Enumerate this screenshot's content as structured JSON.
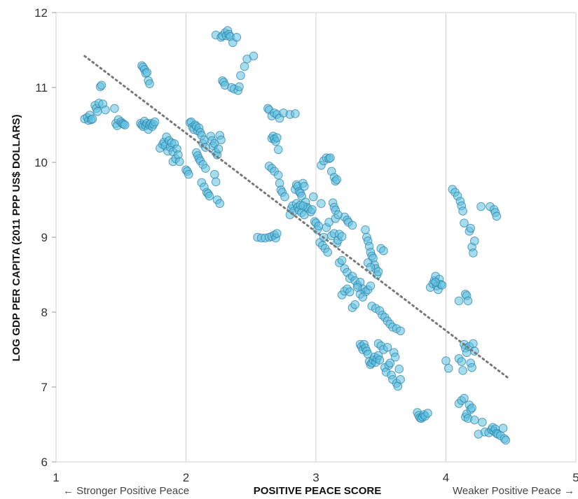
{
  "chart_data": {
    "type": "scatter",
    "xlabel": "POSITIVE PEACE SCORE",
    "ylabel": "LOG GDP PER CAPITA (2011 PPP US$ DOLLARS)",
    "xlim": [
      1,
      5
    ],
    "ylim": [
      6,
      12
    ],
    "x_ticks": [
      "1",
      "2",
      "3",
      "4",
      "5"
    ],
    "y_ticks": [
      "6",
      "7",
      "8",
      "9",
      "10",
      "11",
      "12"
    ],
    "x_left_annotation": "← Stronger Positive Peace",
    "x_right_annotation": "Weaker Positive Peace →",
    "grid": "vertical",
    "colors": {
      "points_fill": "#5bbfe0",
      "points_stroke": "#2a7ea3",
      "trend": "#777777",
      "grid": "#d0d0d0"
    },
    "trendline": {
      "x": [
        1.22,
        4.48
      ],
      "y": [
        11.42,
        7.12
      ]
    },
    "points": [
      [
        1.22,
        10.58
      ],
      [
        1.24,
        10.6
      ],
      [
        1.25,
        10.56
      ],
      [
        1.26,
        10.63
      ],
      [
        1.27,
        10.57
      ],
      [
        1.28,
        10.58
      ],
      [
        1.3,
        10.76
      ],
      [
        1.31,
        10.72
      ],
      [
        1.32,
        10.68
      ],
      [
        1.33,
        10.79
      ],
      [
        1.34,
        11.01
      ],
      [
        1.35,
        11.03
      ],
      [
        1.36,
        10.78
      ],
      [
        1.38,
        10.7
      ],
      [
        1.45,
        10.72
      ],
      [
        1.46,
        10.52
      ],
      [
        1.47,
        10.49
      ],
      [
        1.48,
        10.57
      ],
      [
        1.5,
        10.54
      ],
      [
        1.51,
        10.52
      ],
      [
        1.52,
        10.51
      ],
      [
        1.53,
        10.5
      ],
      [
        1.66,
        11.29
      ],
      [
        1.67,
        11.27
      ],
      [
        1.68,
        11.24
      ],
      [
        1.69,
        11.19
      ],
      [
        1.7,
        11.2
      ],
      [
        1.71,
        11.09
      ],
      [
        1.72,
        11.05
      ],
      [
        1.65,
        10.52
      ],
      [
        1.66,
        10.5
      ],
      [
        1.67,
        10.48
      ],
      [
        1.68,
        10.55
      ],
      [
        1.69,
        10.49
      ],
      [
        1.7,
        10.52
      ],
      [
        1.71,
        10.44
      ],
      [
        1.72,
        10.5
      ],
      [
        1.73,
        10.52
      ],
      [
        1.74,
        10.48
      ],
      [
        1.75,
        10.51
      ],
      [
        1.76,
        10.54
      ],
      [
        1.8,
        10.19
      ],
      [
        1.82,
        10.24
      ],
      [
        1.83,
        10.27
      ],
      [
        1.84,
        10.22
      ],
      [
        1.85,
        10.34
      ],
      [
        1.86,
        10.15
      ],
      [
        1.87,
        10.29
      ],
      [
        1.88,
        10.2
      ],
      [
        1.89,
        10.26
      ],
      [
        1.9,
        10.14
      ],
      [
        1.9,
        10.01
      ],
      [
        1.91,
        10.25
      ],
      [
        1.92,
        10.05
      ],
      [
        1.93,
        10.18
      ],
      [
        1.94,
        10.1
      ],
      [
        1.95,
        10.01
      ],
      [
        2.0,
        9.9
      ],
      [
        2.01,
        9.88
      ],
      [
        2.02,
        9.84
      ],
      [
        2.03,
        10.53
      ],
      [
        2.04,
        10.54
      ],
      [
        2.05,
        10.47
      ],
      [
        2.06,
        10.44
      ],
      [
        2.07,
        10.5
      ],
      [
        2.08,
        10.48
      ],
      [
        2.09,
        10.42
      ],
      [
        2.1,
        10.46
      ],
      [
        2.11,
        10.4
      ],
      [
        2.12,
        10.36
      ],
      [
        2.13,
        10.25
      ],
      [
        2.14,
        10.3
      ],
      [
        2.15,
        10.2
      ],
      [
        2.08,
        10.13
      ],
      [
        2.09,
        10.09
      ],
      [
        2.1,
        10.05
      ],
      [
        2.11,
        10.02
      ],
      [
        2.12,
        9.73
      ],
      [
        2.13,
        9.97
      ],
      [
        2.14,
        9.67
      ],
      [
        2.15,
        9.92
      ],
      [
        2.16,
        9.6
      ],
      [
        2.17,
        9.58
      ],
      [
        2.18,
        9.55
      ],
      [
        2.19,
        10.35
      ],
      [
        2.2,
        10.29
      ],
      [
        2.21,
        10.22
      ],
      [
        2.22,
        10.25
      ],
      [
        2.23,
        10.13
      ],
      [
        2.24,
        10.1
      ],
      [
        2.25,
        10.18
      ],
      [
        2.26,
        10.36
      ],
      [
        2.27,
        10.3
      ],
      [
        2.22,
        9.84
      ],
      [
        2.23,
        9.74
      ],
      [
        2.24,
        9.5
      ],
      [
        2.26,
        9.45
      ],
      [
        2.23,
        11.7
      ],
      [
        2.27,
        11.67
      ],
      [
        2.28,
        11.69
      ],
      [
        2.3,
        11.73
      ],
      [
        2.31,
        11.69
      ],
      [
        2.32,
        11.76
      ],
      [
        2.33,
        11.71
      ],
      [
        2.34,
        11.68
      ],
      [
        2.36,
        11.6
      ],
      [
        2.39,
        11.67
      ],
      [
        2.28,
        11.09
      ],
      [
        2.29,
        11.07
      ],
      [
        2.3,
        11.03
      ],
      [
        2.35,
        11.0
      ],
      [
        2.37,
        10.98
      ],
      [
        2.4,
        10.96
      ],
      [
        2.41,
        11.01
      ],
      [
        2.42,
        11.16
      ],
      [
        2.45,
        11.28
      ],
      [
        2.47,
        11.38
      ],
      [
        2.52,
        11.42
      ],
      [
        2.55,
        9.0
      ],
      [
        2.58,
        8.99
      ],
      [
        2.61,
        8.99
      ],
      [
        2.64,
        9.0
      ],
      [
        2.66,
        9.01
      ],
      [
        2.68,
        9.03
      ],
      [
        2.69,
        8.99
      ],
      [
        2.7,
        9.05
      ],
      [
        2.63,
        10.72
      ],
      [
        2.64,
        10.7
      ],
      [
        2.66,
        10.62
      ],
      [
        2.68,
        10.66
      ],
      [
        2.7,
        10.64
      ],
      [
        2.72,
        10.59
      ],
      [
        2.75,
        10.66
      ],
      [
        2.8,
        10.64
      ],
      [
        2.84,
        10.65
      ],
      [
        2.66,
        10.32
      ],
      [
        2.67,
        10.35
      ],
      [
        2.68,
        10.31
      ],
      [
        2.69,
        10.28
      ],
      [
        2.7,
        10.33
      ],
      [
        2.71,
        10.17
      ],
      [
        2.64,
        9.95
      ],
      [
        2.66,
        9.92
      ],
      [
        2.68,
        9.88
      ],
      [
        2.71,
        9.83
      ],
      [
        2.72,
        9.72
      ],
      [
        2.73,
        9.63
      ],
      [
        2.74,
        9.6
      ],
      [
        2.76,
        9.54
      ],
      [
        2.8,
        9.3
      ],
      [
        2.81,
        9.38
      ],
      [
        2.82,
        9.42
      ],
      [
        2.83,
        9.35
      ],
      [
        2.84,
        9.64
      ],
      [
        2.85,
        9.7
      ],
      [
        2.86,
        9.68
      ],
      [
        2.87,
        9.61
      ],
      [
        2.88,
        9.59
      ],
      [
        2.89,
        9.55
      ],
      [
        2.9,
        9.72
      ],
      [
        2.91,
        9.68
      ],
      [
        2.92,
        9.47
      ],
      [
        2.93,
        9.4
      ],
      [
        2.94,
        9.38
      ],
      [
        2.85,
        9.45
      ],
      [
        2.86,
        9.4
      ],
      [
        2.87,
        9.36
      ],
      [
        2.88,
        9.43
      ],
      [
        2.89,
        9.33
      ],
      [
        2.9,
        9.42
      ],
      [
        2.91,
        9.3
      ],
      [
        2.96,
        9.34
      ],
      [
        2.97,
        9.37
      ],
      [
        2.98,
        9.54
      ],
      [
        2.99,
        9.21
      ],
      [
        3.0,
        9.19
      ],
      [
        3.01,
        9.1
      ],
      [
        3.02,
        9.15
      ],
      [
        3.03,
        8.93
      ],
      [
        3.04,
        9.45
      ],
      [
        3.05,
        8.89
      ],
      [
        3.06,
        9.0
      ],
      [
        3.07,
        8.85
      ],
      [
        3.08,
        9.13
      ],
      [
        3.09,
        8.8
      ],
      [
        3.1,
        9.2
      ],
      [
        3.12,
        9.02
      ],
      [
        3.14,
        9.05
      ],
      [
        3.15,
        9.25
      ],
      [
        3.16,
        8.92
      ],
      [
        3.17,
        8.96
      ],
      [
        3.18,
        9.04
      ],
      [
        3.2,
        9.01
      ],
      [
        3.22,
        9.27
      ],
      [
        3.24,
        9.23
      ],
      [
        3.25,
        9.2
      ],
      [
        3.28,
        9.16
      ],
      [
        3.04,
        9.96
      ],
      [
        3.06,
        10.02
      ],
      [
        3.08,
        10.06
      ],
      [
        3.1,
        10.05
      ],
      [
        3.12,
        9.88
      ],
      [
        3.14,
        9.8
      ],
      [
        3.15,
        9.75
      ],
      [
        3.16,
        9.77
      ],
      [
        3.11,
        10.06
      ],
      [
        3.13,
        9.46
      ],
      [
        3.14,
        9.4
      ],
      [
        3.15,
        9.36
      ],
      [
        3.17,
        9.3
      ],
      [
        3.18,
        8.66
      ],
      [
        3.2,
        8.69
      ],
      [
        3.22,
        8.58
      ],
      [
        3.24,
        8.53
      ],
      [
        3.26,
        8.45
      ],
      [
        3.28,
        8.48
      ],
      [
        3.3,
        8.42
      ],
      [
        3.32,
        8.36
      ],
      [
        3.34,
        8.4
      ],
      [
        3.36,
        8.31
      ],
      [
        3.38,
        8.27
      ],
      [
        3.4,
        8.3
      ],
      [
        3.42,
        8.35
      ],
      [
        3.2,
        8.23
      ],
      [
        3.22,
        8.28
      ],
      [
        3.24,
        8.31
      ],
      [
        3.26,
        8.27
      ],
      [
        3.28,
        8.06
      ],
      [
        3.3,
        8.1
      ],
      [
        3.32,
        8.33
      ],
      [
        3.34,
        8.24
      ],
      [
        3.36,
        8.2
      ],
      [
        3.38,
        9.1
      ],
      [
        3.39,
        9.0
      ],
      [
        3.4,
        8.95
      ],
      [
        3.41,
        8.88
      ],
      [
        3.42,
        8.8
      ],
      [
        3.43,
        8.75
      ],
      [
        3.44,
        8.72
      ],
      [
        3.45,
        8.63
      ],
      [
        3.46,
        8.58
      ],
      [
        3.47,
        8.5
      ],
      [
        3.48,
        8.54
      ],
      [
        3.5,
        8.85
      ],
      [
        3.52,
        8.82
      ],
      [
        3.4,
        8.66
      ],
      [
        3.42,
        8.6
      ],
      [
        3.43,
        8.08
      ],
      [
        3.46,
        8.05
      ],
      [
        3.49,
        8.02
      ],
      [
        3.51,
        7.96
      ],
      [
        3.53,
        7.93
      ],
      [
        3.55,
        7.88
      ],
      [
        3.57,
        7.84
      ],
      [
        3.59,
        7.8
      ],
      [
        3.62,
        7.78
      ],
      [
        3.65,
        7.75
      ],
      [
        3.34,
        7.57
      ],
      [
        3.35,
        7.54
      ],
      [
        3.36,
        7.5
      ],
      [
        3.37,
        7.57
      ],
      [
        3.38,
        7.52
      ],
      [
        3.39,
        7.48
      ],
      [
        3.4,
        7.44
      ],
      [
        3.41,
        7.34
      ],
      [
        3.42,
        7.3
      ],
      [
        3.43,
        7.32
      ],
      [
        3.44,
        7.36
      ],
      [
        3.45,
        7.4
      ],
      [
        3.46,
        7.33
      ],
      [
        3.47,
        7.38
      ],
      [
        3.48,
        7.42
      ],
      [
        3.49,
        7.36
      ],
      [
        3.48,
        7.58
      ],
      [
        3.5,
        7.55
      ],
      [
        3.52,
        7.5
      ],
      [
        3.53,
        7.26
      ],
      [
        3.54,
        7.2
      ],
      [
        3.55,
        7.53
      ],
      [
        3.56,
        7.29
      ],
      [
        3.57,
        7.32
      ],
      [
        3.58,
        7.16
      ],
      [
        3.59,
        7.1
      ],
      [
        3.6,
        7.46
      ],
      [
        3.61,
        7.4
      ],
      [
        3.62,
        7.05
      ],
      [
        3.63,
        7.01
      ],
      [
        3.64,
        7.24
      ],
      [
        3.65,
        7.1
      ],
      [
        3.78,
        6.66
      ],
      [
        3.79,
        6.62
      ],
      [
        3.8,
        6.59
      ],
      [
        3.81,
        6.58
      ],
      [
        3.82,
        6.6
      ],
      [
        3.83,
        6.63
      ],
      [
        3.84,
        6.61
      ],
      [
        3.86,
        6.65
      ],
      [
        3.88,
        8.33
      ],
      [
        3.9,
        8.38
      ],
      [
        3.91,
        8.42
      ],
      [
        3.92,
        8.48
      ],
      [
        3.93,
        8.35
      ],
      [
        3.94,
        8.3
      ],
      [
        3.95,
        8.44
      ],
      [
        3.96,
        8.37
      ],
      [
        3.97,
        8.36
      ],
      [
        3.92,
        8.4
      ],
      [
        4.0,
        7.35
      ],
      [
        4.02,
        7.25
      ],
      [
        4.05,
        9.64
      ],
      [
        4.07,
        9.6
      ],
      [
        4.09,
        9.55
      ],
      [
        4.1,
        8.15
      ],
      [
        4.11,
        9.48
      ],
      [
        4.12,
        9.42
      ],
      [
        4.13,
        9.35
      ],
      [
        4.14,
        9.19
      ],
      [
        4.15,
        8.24
      ],
      [
        4.16,
        8.22
      ],
      [
        4.17,
        8.15
      ],
      [
        4.18,
        9.08
      ],
      [
        4.19,
        9.12
      ],
      [
        4.2,
        8.87
      ],
      [
        4.21,
        8.79
      ],
      [
        4.22,
        8.95
      ],
      [
        4.1,
        7.38
      ],
      [
        4.12,
        7.34
      ],
      [
        4.13,
        7.22
      ],
      [
        4.14,
        7.57
      ],
      [
        4.15,
        7.52
      ],
      [
        4.16,
        7.46
      ],
      [
        4.18,
        7.54
      ],
      [
        4.19,
        7.32
      ],
      [
        4.2,
        7.26
      ],
      [
        4.21,
        7.58
      ],
      [
        4.22,
        7.48
      ],
      [
        4.1,
        6.78
      ],
      [
        4.12,
        6.82
      ],
      [
        4.14,
        6.85
      ],
      [
        4.15,
        6.6
      ],
      [
        4.16,
        6.64
      ],
      [
        4.17,
        6.58
      ],
      [
        4.18,
        6.76
      ],
      [
        4.19,
        6.7
      ],
      [
        4.2,
        6.72
      ],
      [
        4.22,
        6.56
      ],
      [
        4.25,
        6.37
      ],
      [
        4.28,
        6.53
      ],
      [
        4.27,
        9.41
      ],
      [
        4.34,
        9.41
      ],
      [
        4.37,
        9.37
      ],
      [
        4.38,
        9.33
      ],
      [
        4.39,
        9.28
      ],
      [
        4.3,
        6.4
      ],
      [
        4.33,
        6.39
      ],
      [
        4.35,
        6.43
      ],
      [
        4.36,
        6.46
      ],
      [
        4.37,
        6.41
      ],
      [
        4.38,
        6.44
      ],
      [
        4.39,
        6.38
      ],
      [
        4.4,
        6.37
      ],
      [
        4.42,
        6.35
      ],
      [
        4.44,
        6.45
      ],
      [
        4.45,
        6.31
      ],
      [
        4.46,
        6.29
      ]
    ]
  }
}
